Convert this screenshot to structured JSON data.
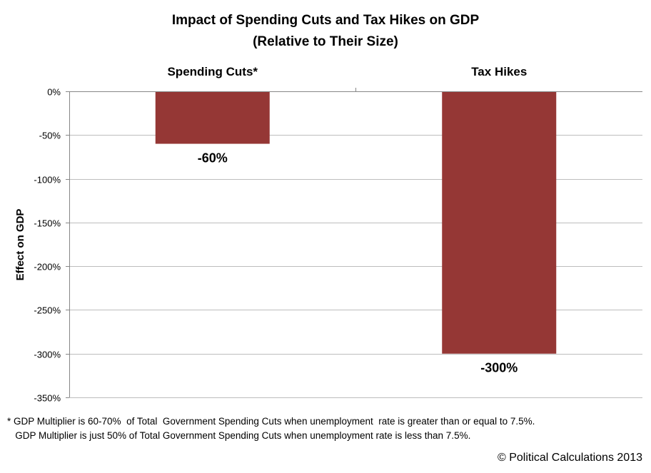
{
  "chart_data": {
    "type": "bar",
    "title": [
      "Impact of Spending Cuts and Tax Hikes on GDP",
      "(Relative to Their Size)"
    ],
    "categories": [
      "Spending Cuts*",
      "Tax Hikes"
    ],
    "values": [
      -60,
      -300
    ],
    "data_labels": [
      "-60%",
      "-300%"
    ],
    "xlabel": "",
    "ylabel": "Effect on GDP",
    "ylim": [
      -350,
      0
    ],
    "yticks": [
      0,
      -50,
      -100,
      -150,
      -200,
      -250,
      -300,
      -350
    ],
    "ytick_labels": [
      "0%",
      "-50%",
      "-100%",
      "-150%",
      "-200%",
      "-250%",
      "-300%",
      "-350%"
    ],
    "category_axis_position": "top",
    "grid": true,
    "legend": "none",
    "bar_color": "#953735"
  },
  "footnote": [
    "* GDP Multiplier is 60-70%  of Total  Government Spending Cuts when unemployment  rate is greater than or equal to 7.5%.",
    "   GDP Multiplier is just 50% of Total Government Spending Cuts when unemployment rate is less than 7.5%."
  ],
  "credit": "© Political Calculations 2013"
}
